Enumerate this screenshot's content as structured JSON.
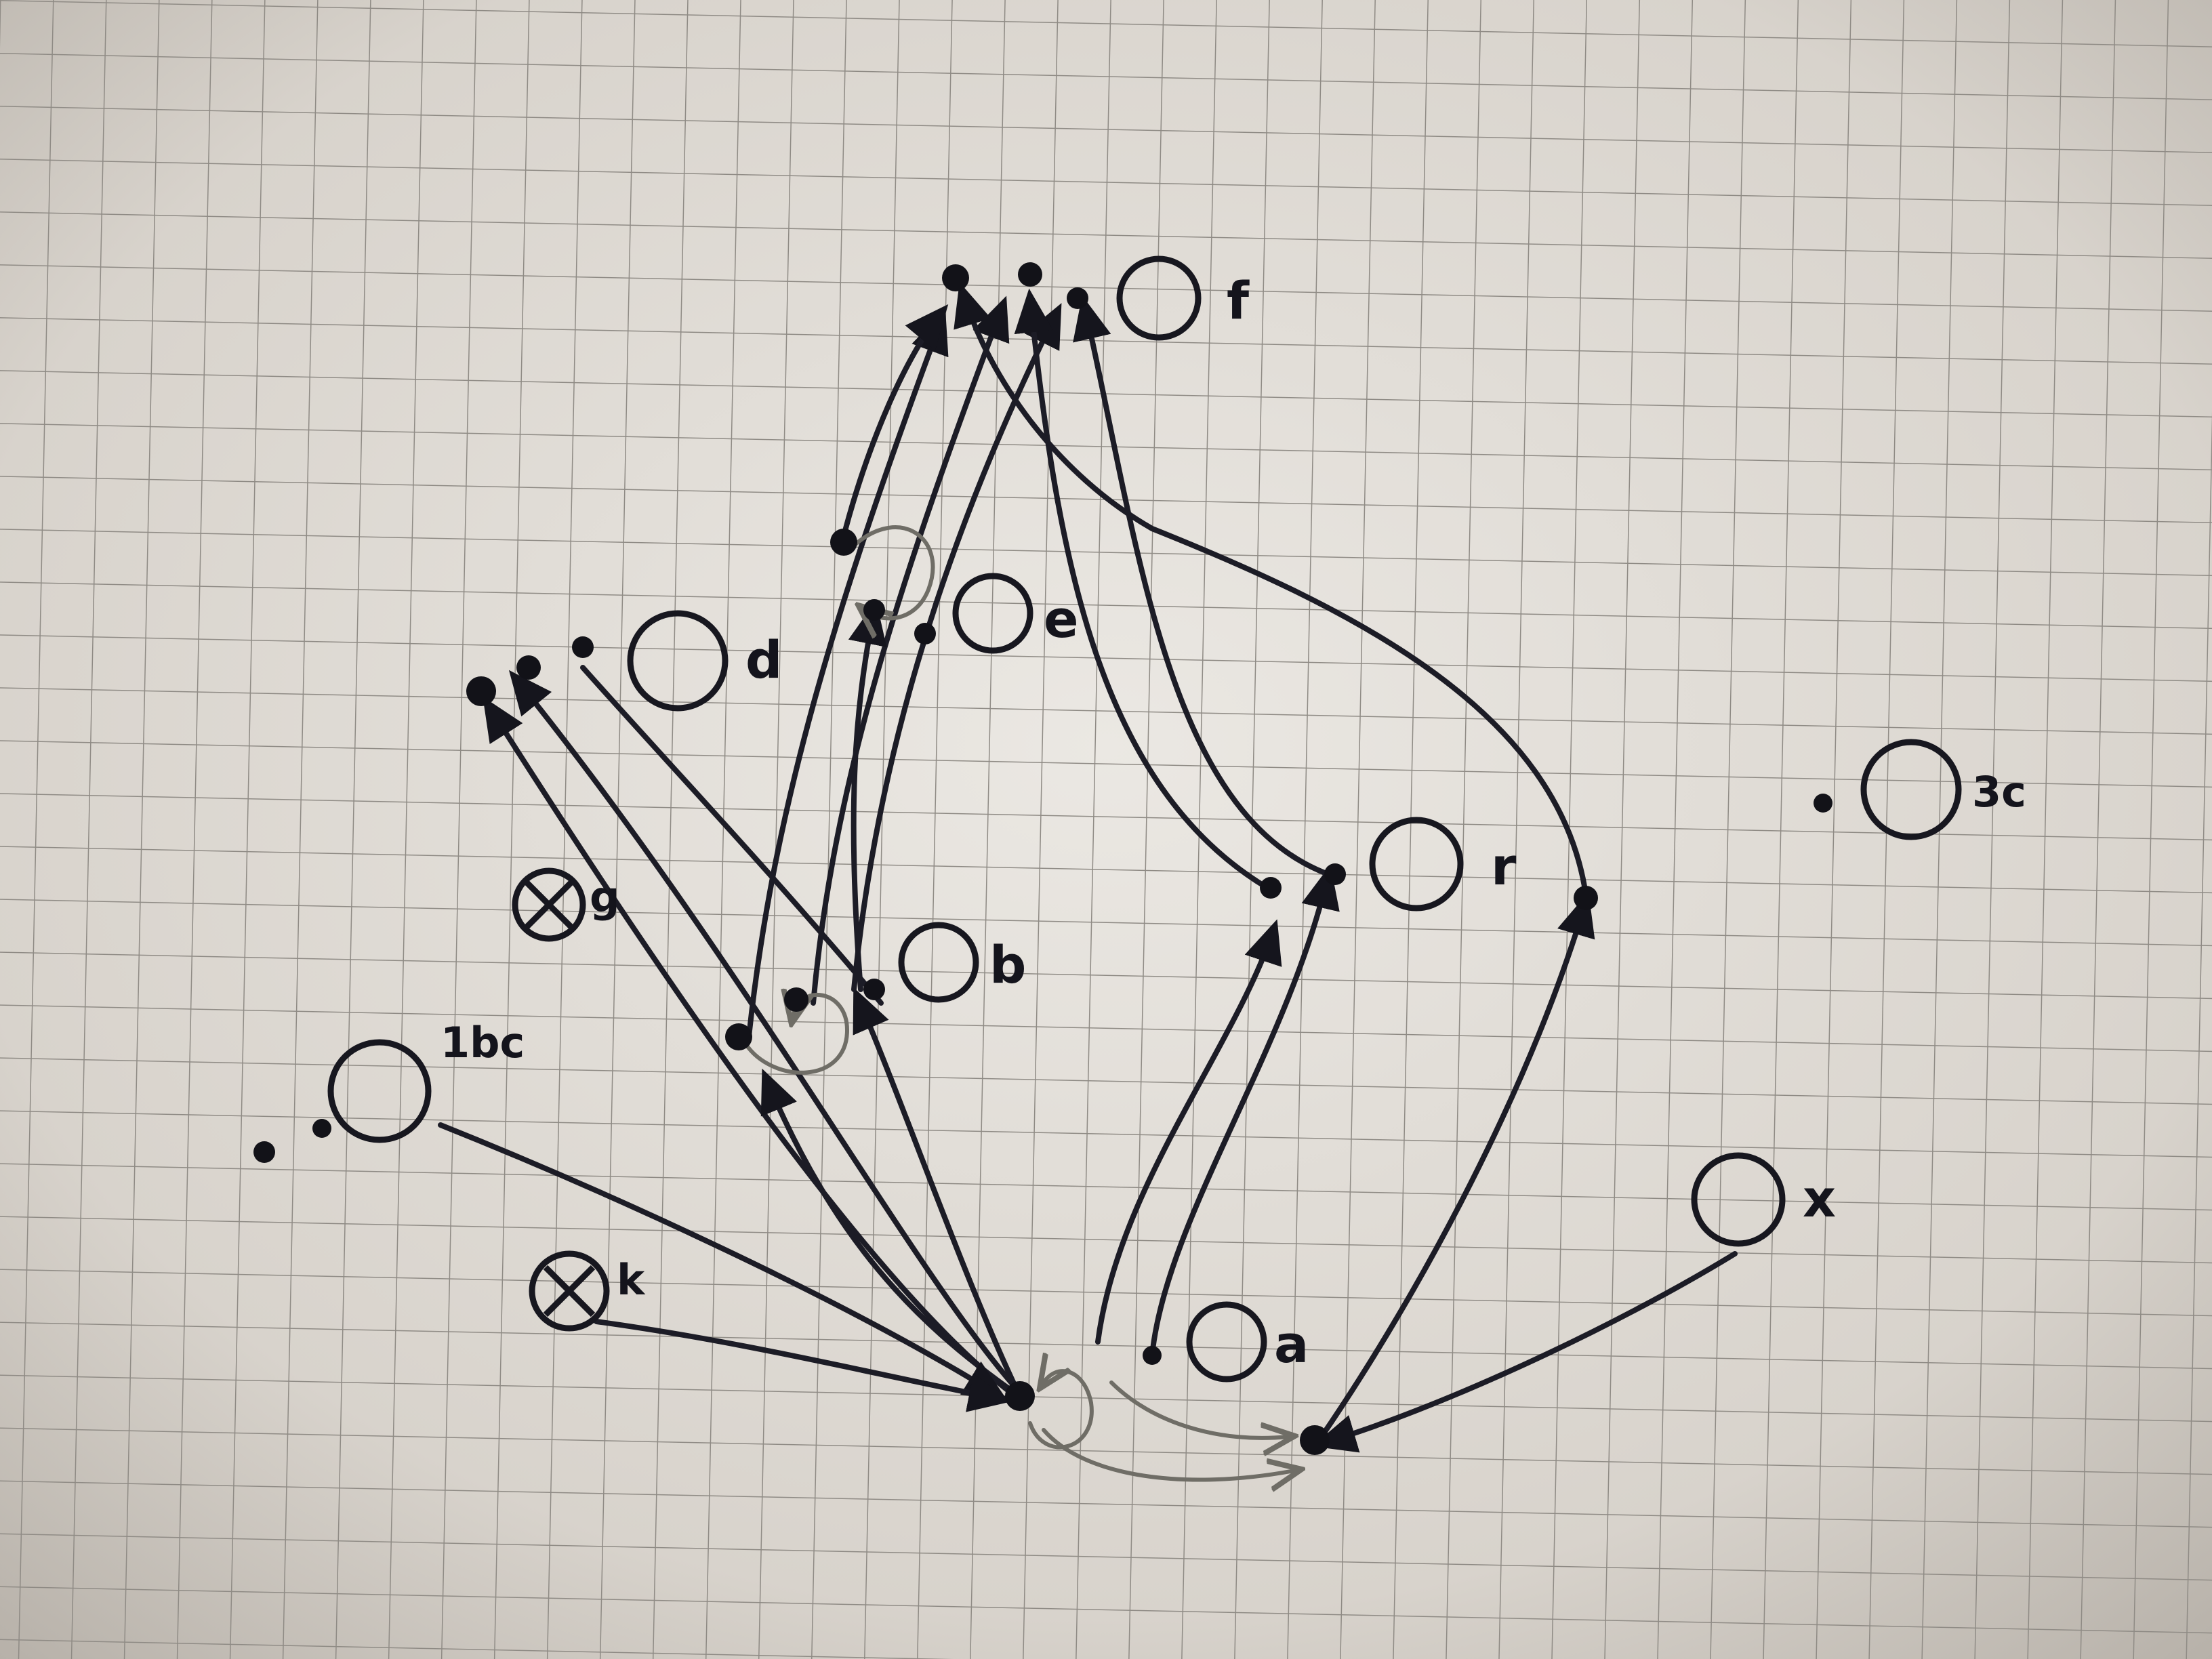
{
  "nodes": [
    {
      "id": "f",
      "label": "f"
    },
    {
      "id": "d",
      "label": "d"
    },
    {
      "id": "e",
      "label": "e"
    },
    {
      "id": "b",
      "label": "b"
    },
    {
      "id": "r",
      "label": "r"
    },
    {
      "id": "3c",
      "label": "3c"
    },
    {
      "id": "a",
      "label": "a"
    },
    {
      "id": "x",
      "label": "x"
    },
    {
      "id": "1bc",
      "label": "1bc"
    },
    {
      "id": "g",
      "label": "g"
    },
    {
      "id": "k",
      "label": "k"
    }
  ],
  "edge_count": 19,
  "paper": {
    "color": "#d2cdc6",
    "grid_color": "#8f8b85",
    "ink_color": "#17171f"
  }
}
